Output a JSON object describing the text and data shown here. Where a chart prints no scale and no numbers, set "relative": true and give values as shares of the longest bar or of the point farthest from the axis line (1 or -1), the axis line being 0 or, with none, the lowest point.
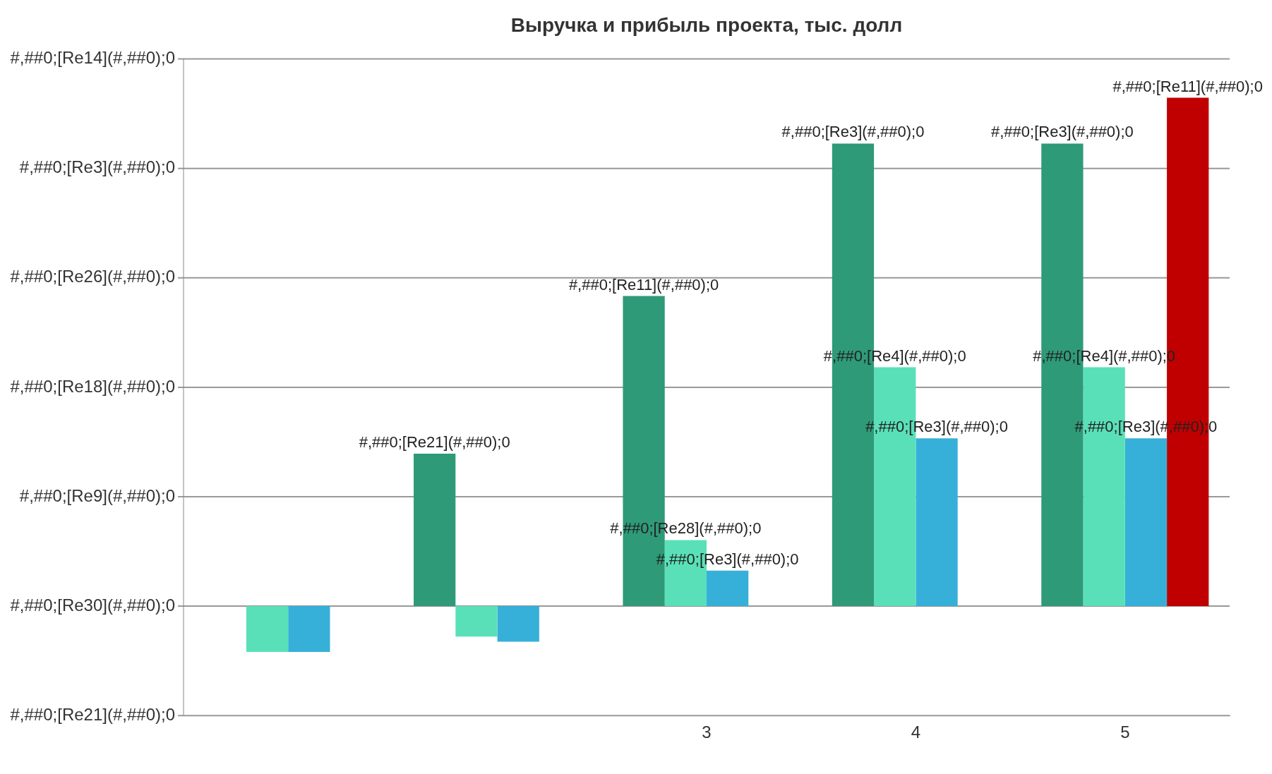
{
  "chart_data": {
    "type": "bar",
    "title": "Выручка и прибыль проекта, тыс. долл",
    "categories": [
      null,
      null,
      "3",
      "4",
      "5"
    ],
    "relative": true,
    "series": [
      {
        "color": "#2e9a78",
        "values": [
          0,
          0.3,
          0.61,
          0.91,
          0.91
        ]
      },
      {
        "color": "#5ae0b8",
        "values": [
          -0.09,
          -0.06,
          0.13,
          0.47,
          0.47
        ]
      },
      {
        "color": "#36b0d8",
        "values": [
          -0.09,
          -0.07,
          0.07,
          0.33,
          0.33
        ]
      },
      {
        "color": "#c00000",
        "values": [
          0,
          0,
          0,
          0,
          1
        ]
      }
    ],
    "annotations": [
      "#,##0;[Re14](#,##0);0",
      "#,##0;[Re3](#,##0);0",
      "#,##0;[Re26](#,##0);0",
      "#,##0;[Re18](#,##0);0",
      "#,##0;[Re9](#,##0);0",
      "#,##0;[Re30](#,##0);0",
      "#,##0;[Re21](#,##0);0",
      {
        "text": "#,##0;[Re21](#,##0);0",
        "y": 0.3
      },
      {
        "text": "#,##0;[Re11](#,##0);0",
        "y": 0.61
      },
      {
        "text": "#,##0;[Re28](#,##0);0",
        "x": "3",
        "y": 0.13
      },
      {
        "text": "#,##0;[Re3](#,##0);0",
        "x": "3",
        "y": 0.07
      },
      {
        "text": "#,##0;[Re3](#,##0);0",
        "y": 0.91
      },
      {
        "text": "#,##0;[Re4](#,##0);0",
        "x": "4",
        "y": 0.47
      },
      {
        "text": "#,##0;[Re3](#,##0);0",
        "x": "4",
        "y": 0.33
      },
      {
        "text": "#,##0;[Re3](#,##0);0",
        "y": 0.91
      },
      {
        "text": "#,##0;[Re4](#,##0);0",
        "x": "5",
        "y": 0.47
      },
      {
        "text": "#,##0;[Re3](#,##0);0",
        "x": "5",
        "y": 0.33
      },
      {
        "text": "#,##0;[Re11](#,##0);0",
        "y": 1
      }
    ],
    "grid": "y"
  }
}
